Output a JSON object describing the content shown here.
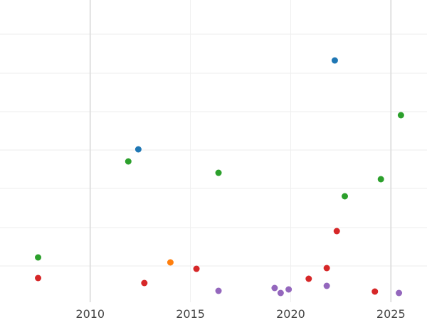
{
  "chart_data": {
    "type": "scatter",
    "title": "",
    "xlabel": "",
    "ylabel": "",
    "xlim": [
      2005.5,
      2026.8
    ],
    "ylim": [
      0,
      425
    ],
    "x_ticks": [
      2010,
      2015,
      2020,
      2025
    ],
    "x_tick_labels": [
      "2010",
      "2015",
      "2020",
      "2025"
    ],
    "y_gridlines": [
      48,
      103,
      157,
      211,
      265,
      320,
      374
    ],
    "grid": true,
    "legend": "none",
    "series": [
      {
        "color": "#1f77b4",
        "points": [
          [
            2012.4,
            210
          ],
          [
            2022.2,
            85
          ]
        ]
      },
      {
        "color": "#ff7f0e",
        "points": [
          [
            2014.0,
            369
          ]
        ]
      },
      {
        "color": "#2ca02c",
        "points": [
          [
            2007.4,
            362
          ],
          [
            2011.9,
            227
          ],
          [
            2016.4,
            243
          ],
          [
            2022.7,
            276
          ],
          [
            2024.5,
            252
          ],
          [
            2025.5,
            162
          ]
        ]
      },
      {
        "color": "#d62728",
        "points": [
          [
            2007.4,
            391
          ],
          [
            2012.7,
            398
          ],
          [
            2015.3,
            378
          ],
          [
            2020.9,
            392
          ],
          [
            2021.8,
            377
          ],
          [
            2022.3,
            325
          ],
          [
            2024.2,
            410
          ]
        ]
      },
      {
        "color": "#9467bd",
        "points": [
          [
            2016.4,
            409
          ],
          [
            2019.2,
            405
          ],
          [
            2019.5,
            412
          ],
          [
            2019.9,
            407
          ],
          [
            2021.8,
            402
          ],
          [
            2025.4,
            412
          ]
        ]
      }
    ]
  }
}
